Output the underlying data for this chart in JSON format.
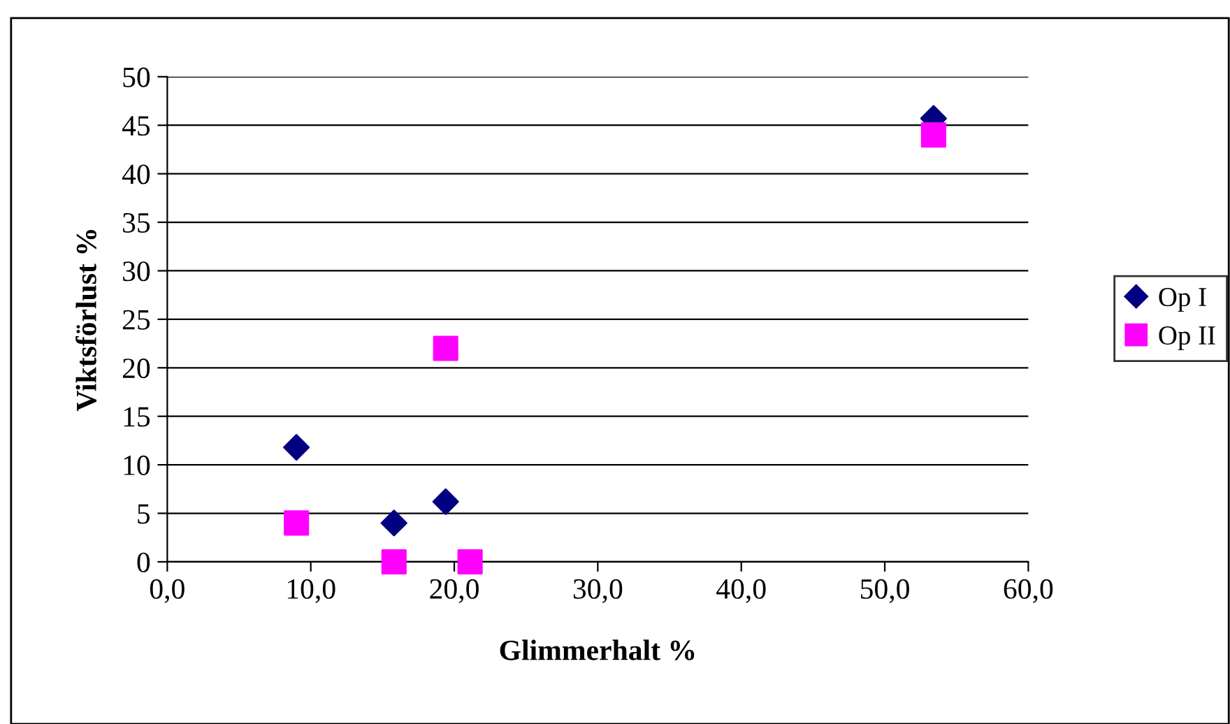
{
  "chart_data": {
    "type": "scatter",
    "xlabel": "Glimmerhalt %",
    "ylabel": "Viktsförlust %",
    "xlim": [
      0,
      60
    ],
    "xticks": [
      {
        "value": 0,
        "label": "0,0"
      },
      {
        "value": 10,
        "label": "10,0"
      },
      {
        "value": 20,
        "label": "20,0"
      },
      {
        "value": 30,
        "label": "30,0"
      },
      {
        "value": 40,
        "label": "40,0"
      },
      {
        "value": 50,
        "label": "50,0"
      },
      {
        "value": 60,
        "label": "60,0"
      }
    ],
    "ylim": [
      0,
      50
    ],
    "yticks": [
      0,
      5,
      10,
      15,
      20,
      25,
      30,
      35,
      40,
      45,
      50
    ],
    "grid": "y",
    "legend": "right",
    "series": [
      {
        "name": "Op I",
        "color": "#000080",
        "marker": "diamond",
        "x": [
          9.0,
          15.8,
          19.4,
          21.1,
          53.4
        ],
        "values": [
          11.8,
          4.0,
          6.2,
          null,
          45.7
        ]
      },
      {
        "name": "Op II",
        "color": "#ff00ff",
        "marker": "square",
        "x": [
          9.0,
          15.8,
          19.4,
          21.1,
          53.4
        ],
        "values": [
          4.0,
          0.0,
          22.0,
          0.0,
          44.0
        ]
      }
    ]
  }
}
